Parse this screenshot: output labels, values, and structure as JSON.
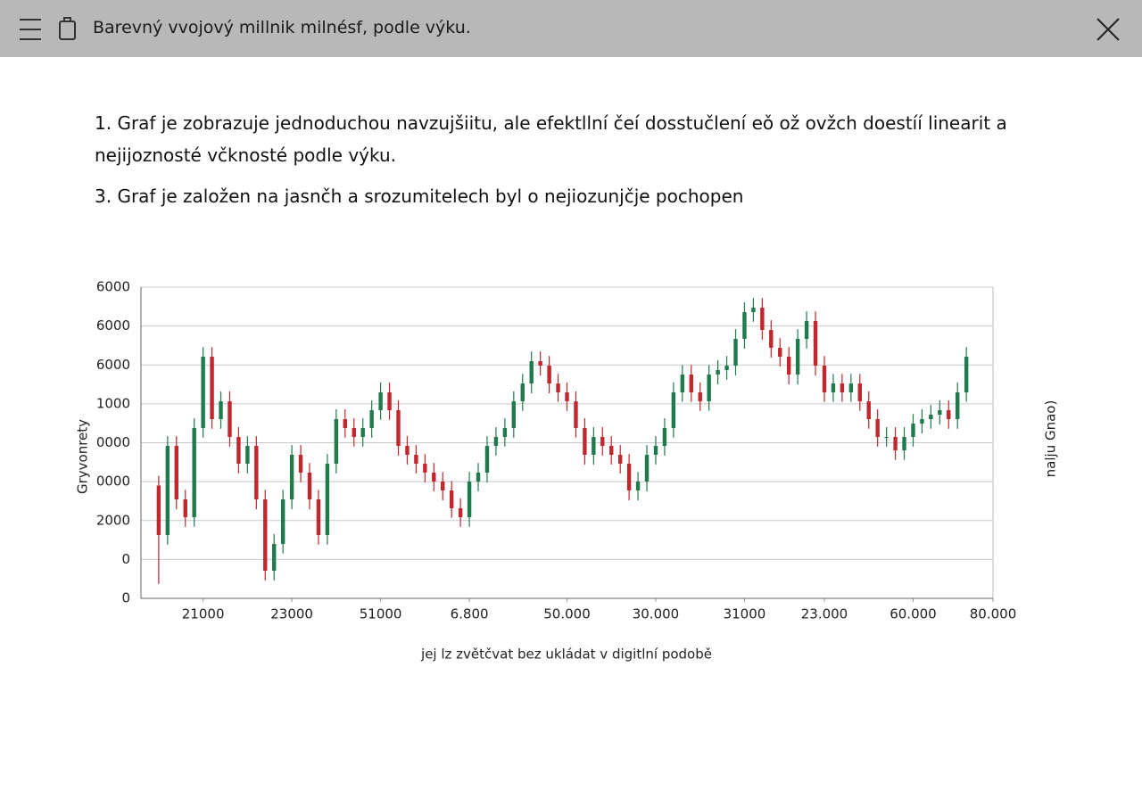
{
  "header": {
    "title": "Barevný vvojový millnik milnésf, podle výku."
  },
  "paragraphs": [
    "1. Graf je zobrazuje jednoduchou navzujšiitu, ale efektllní čeí dosstučlení eǒ ož ovžch doestíí linearit a nejijoznosté včknosté podle výku.",
    "3. Graf je založen na jasnčh a srozumitelech byl o nejiozunjčje pochopen"
  ],
  "chart_data": {
    "type": "candlestick",
    "y_label": "Gryvonrety",
    "right_label": "nalju Gnao)",
    "x_label": "jej lz zvětčvat bez ukládat v digitlní podobě",
    "up_color": "#1f7a4c",
    "down_color": "#c1272d",
    "grid": true,
    "xlim": [
      0,
      96
    ],
    "xticks": [
      {
        "value": 7,
        "label": "21000"
      },
      {
        "value": 17,
        "label": "23000"
      },
      {
        "value": 27,
        "label": "51000"
      },
      {
        "value": 37,
        "label": "6.800"
      },
      {
        "value": 48,
        "label": "50.000"
      },
      {
        "value": 58,
        "label": "30.000"
      },
      {
        "value": 68,
        "label": "31000"
      },
      {
        "value": 77,
        "label": "23.000"
      },
      {
        "value": 87,
        "label": "60.000"
      },
      {
        "value": 96,
        "label": "80.000"
      }
    ],
    "ylim": [
      0,
      8000
    ],
    "yticks": [
      0,
      {
        "value": 1000,
        "label": "0"
      },
      2000,
      {
        "value": 3000,
        "label": "0000"
      },
      {
        "value": 4000,
        "label": "0000"
      },
      {
        "value": 5000,
        "label": "1000"
      },
      {
        "value": 6000,
        "label": "6000"
      },
      {
        "value": 7000,
        "label": "6000"
      },
      {
        "value": 8000,
        "label": "6000"
      }
    ],
    "x": [
      2,
      3,
      4,
      5,
      6,
      7,
      8,
      9,
      10,
      11,
      12,
      13,
      14,
      15,
      16,
      17,
      18,
      19,
      20,
      21,
      22,
      23,
      24,
      25,
      26,
      27,
      28,
      29,
      30,
      31,
      32,
      33,
      34,
      35,
      36,
      37,
      38,
      39,
      40,
      41,
      42,
      43,
      44,
      45,
      46,
      47,
      48,
      49,
      50,
      51,
      52,
      53,
      54,
      55,
      56,
      57,
      58,
      59,
      60,
      61,
      62,
      63,
      64,
      65,
      66,
      67,
      68,
      69,
      70,
      71,
      72,
      73,
      74,
      75,
      76,
      77,
      78,
      79,
      80,
      81,
      82,
      83,
      84,
      85,
      86,
      87,
      88,
      89,
      90,
      91,
      92,
      93
    ],
    "open": [
      2900,
      1627,
      3919,
      2544,
      2086,
      4378,
      6211,
      4607,
      5065,
      4149,
      3461,
      3919,
      2544,
      711,
      1398,
      2544,
      3690,
      3232,
      2544,
      1627,
      3461,
      4607,
      4378,
      4149,
      4378,
      4836,
      5295,
      4836,
      3919,
      3690,
      3461,
      3232,
      3003,
      2773,
      2315,
      2086,
      3003,
      3232,
      3919,
      4149,
      4378,
      5065,
      5524,
      6097,
      5982,
      5524,
      5295,
      5065,
      4378,
      3690,
      4149,
      3919,
      3690,
      3461,
      2773,
      3003,
      3690,
      3919,
      4378,
      5295,
      5753,
      5295,
      5065,
      5753,
      5868,
      5982,
      6670,
      7357,
      7472,
      6899,
      6440,
      6211,
      5753,
      6670,
      7128,
      5982,
      5295,
      5524,
      5295,
      5524,
      5065,
      4607,
      4149,
      4149,
      3805,
      4149,
      4492,
      4607,
      4722,
      4836,
      4607,
      5295
    ],
    "high": [
      3150,
      4170,
      4170,
      2790,
      4630,
      6460,
      6460,
      5320,
      5320,
      4400,
      4170,
      4170,
      2790,
      1650,
      2790,
      3940,
      3940,
      3480,
      2790,
      3710,
      4860,
      4860,
      4630,
      4630,
      5090,
      5550,
      5550,
      5090,
      4170,
      3940,
      3710,
      3480,
      3250,
      3020,
      2570,
      3250,
      3480,
      4170,
      4400,
      4630,
      5320,
      5770,
      6350,
      6350,
      6230,
      5770,
      5550,
      5320,
      4630,
      4400,
      4400,
      4170,
      3940,
      3710,
      3250,
      3940,
      4170,
      4630,
      5550,
      6000,
      6000,
      5550,
      6000,
      6120,
      6230,
      6920,
      7610,
      7720,
      7720,
      7150,
      6690,
      6460,
      6920,
      7380,
      7380,
      6230,
      5770,
      5770,
      5770,
      5770,
      5320,
      4860,
      4400,
      4400,
      4400,
      4740,
      4860,
      4970,
      5090,
      5090,
      5550,
      6460
    ],
    "low": [
      370,
      1380,
      2290,
      1840,
      1840,
      4130,
      4360,
      4360,
      3900,
      3210,
      3210,
      2290,
      460,
      460,
      1150,
      2290,
      2980,
      2290,
      1380,
      1380,
      3210,
      4130,
      3900,
      3900,
      4130,
      4590,
      4590,
      3670,
      3440,
      3210,
      2980,
      2750,
      2520,
      2070,
      1840,
      1840,
      2750,
      2980,
      3670,
      3900,
      4130,
      4820,
      5270,
      5730,
      5270,
      5050,
      4820,
      4130,
      3440,
      3440,
      3670,
      3440,
      3210,
      2520,
      2520,
      2750,
      3440,
      3670,
      4130,
      5050,
      5050,
      4820,
      4820,
      5500,
      5620,
      5730,
      6420,
      7110,
      6650,
      6190,
      5960,
      5500,
      5500,
      6420,
      5730,
      5050,
      5050,
      5050,
      5050,
      4820,
      4360,
      3900,
      3900,
      3560,
      3560,
      3900,
      4240,
      4360,
      4470,
      4360,
      4360,
      5050
    ],
    "close": [
      1627,
      3919,
      2544,
      2086,
      4378,
      6211,
      4607,
      5065,
      4149,
      3461,
      3919,
      2544,
      711,
      1398,
      2544,
      3690,
      3232,
      2544,
      1627,
      3461,
      4607,
      4378,
      4149,
      4378,
      4836,
      5295,
      4836,
      3919,
      3690,
      3461,
      3232,
      3003,
      2773,
      2315,
      2086,
      3003,
      3232,
      3919,
      4149,
      4378,
      5065,
      5524,
      6097,
      5982,
      5524,
      5295,
      5065,
      4378,
      3690,
      4149,
      3919,
      3690,
      3461,
      2773,
      3003,
      3690,
      3919,
      4378,
      5295,
      5753,
      5295,
      5065,
      5753,
      5868,
      5982,
      6670,
      7357,
      7472,
      6899,
      6440,
      6211,
      5753,
      6670,
      7128,
      5982,
      5295,
      5524,
      5295,
      5524,
      5065,
      4607,
      4149,
      4149,
      3805,
      4149,
      4492,
      4607,
      4722,
      4836,
      4607,
      5295,
      6211
    ]
  }
}
